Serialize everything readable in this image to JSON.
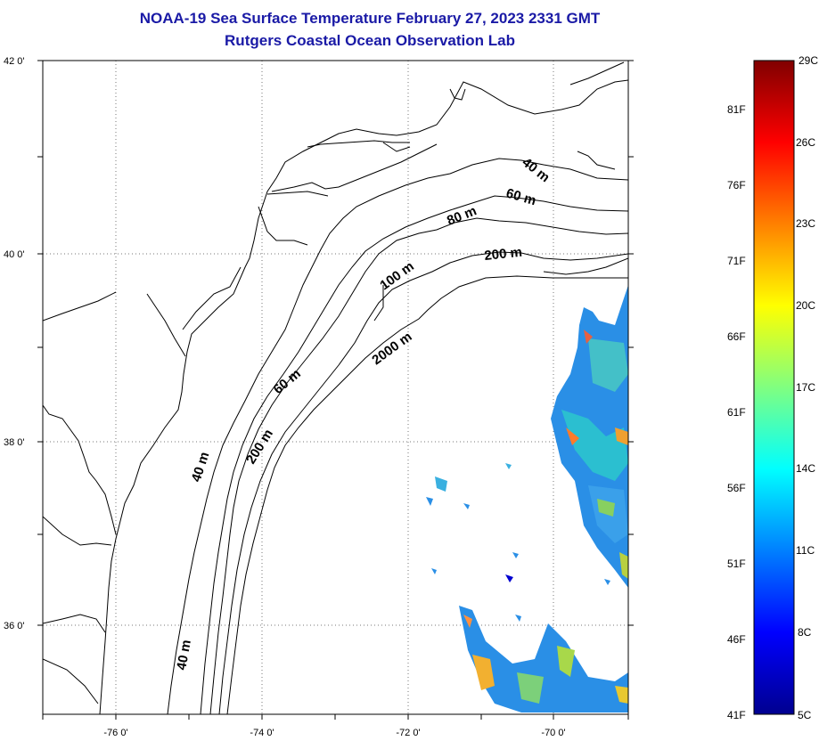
{
  "title": {
    "line1": "NOAA-19 Sea Surface Temperature February 27, 2023 2331 GMT",
    "line2": "Rutgers Coastal Ocean Observation Lab"
  },
  "axes": {
    "lat_labels": [
      {
        "value": 42,
        "text": "42 0'"
      },
      {
        "value": 40,
        "text": "40 0'"
      },
      {
        "value": 38,
        "text": "38 0'"
      },
      {
        "value": 36,
        "text": "36 0'"
      }
    ],
    "lon_labels": [
      {
        "value": -76,
        "text": "-76 0'"
      },
      {
        "value": -74,
        "text": "-74 0'"
      },
      {
        "value": -72,
        "text": "-72 0'"
      },
      {
        "value": -70,
        "text": "-70 0'"
      }
    ],
    "grid": "dotted"
  },
  "depth_labels": [
    {
      "text": "40 m"
    },
    {
      "text": "60 m"
    },
    {
      "text": "80 m"
    },
    {
      "text": "200 m"
    },
    {
      "text": "100 m"
    },
    {
      "text": "2000 m"
    },
    {
      "text": "60 m"
    },
    {
      "text": "200 m"
    },
    {
      "text": "40 m"
    },
    {
      "text": "40 m"
    }
  ],
  "colorbar": {
    "celsius": [
      "29C",
      "26C",
      "23C",
      "20C",
      "17C",
      "14C",
      "11C",
      "8C",
      "5C"
    ],
    "fahrenheit": [
      "81F",
      "76F",
      "71F",
      "66F",
      "61F",
      "56F",
      "51F",
      "46F",
      "41F"
    ],
    "colors": [
      "#00008f",
      "#0000ff",
      "#0080ff",
      "#00ffff",
      "#80ff80",
      "#ffff00",
      "#ff8000",
      "#ff0000",
      "#800000"
    ]
  }
}
